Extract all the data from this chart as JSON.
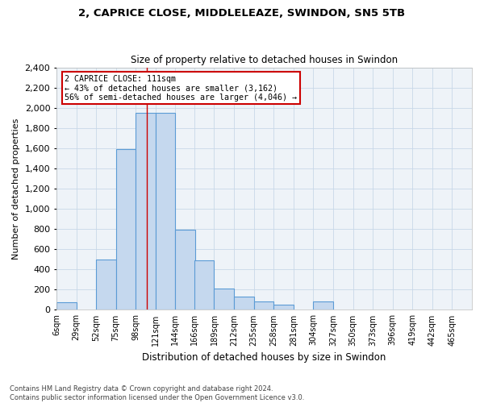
{
  "title1": "2, CAPRICE CLOSE, MIDDLELEAZE, SWINDON, SN5 5TB",
  "title2": "Size of property relative to detached houses in Swindon",
  "xlabel": "Distribution of detached houses by size in Swindon",
  "ylabel": "Number of detached properties",
  "footnote1": "Contains HM Land Registry data © Crown copyright and database right 2024.",
  "footnote2": "Contains public sector information licensed under the Open Government Licence v3.0.",
  "bar_color": "#c5d8ee",
  "bar_edge_color": "#5b9bd5",
  "grid_color": "#c8d8e8",
  "bg_color": "#eef3f8",
  "annotation_line_color": "#cc0000",
  "annotation_box_color": "#cc0000",
  "bin_labels": [
    "6sqm",
    "29sqm",
    "52sqm",
    "75sqm",
    "98sqm",
    "121sqm",
    "144sqm",
    "166sqm",
    "189sqm",
    "212sqm",
    "235sqm",
    "258sqm",
    "281sqm",
    "304sqm",
    "327sqm",
    "350sqm",
    "373sqm",
    "396sqm",
    "419sqm",
    "442sqm",
    "465sqm"
  ],
  "bar_heights": [
    75,
    0,
    500,
    1590,
    1950,
    1950,
    790,
    490,
    210,
    130,
    80,
    50,
    0,
    80,
    0,
    0,
    0,
    0,
    0,
    0,
    0
  ],
  "ylim": [
    0,
    2400
  ],
  "yticks": [
    0,
    200,
    400,
    600,
    800,
    1000,
    1200,
    1400,
    1600,
    1800,
    2000,
    2200,
    2400
  ],
  "property_label": "2 CAPRICE CLOSE: 111sqm",
  "annotation_text1": "← 43% of detached houses are smaller (3,162)",
  "annotation_text2": "56% of semi-detached houses are larger (4,046) →",
  "property_line_x": 111,
  "bin_edges": [
    6,
    29,
    52,
    75,
    98,
    121,
    144,
    166,
    189,
    212,
    235,
    258,
    281,
    304,
    327,
    350,
    373,
    396,
    419,
    442,
    465
  ],
  "bin_width": 23
}
